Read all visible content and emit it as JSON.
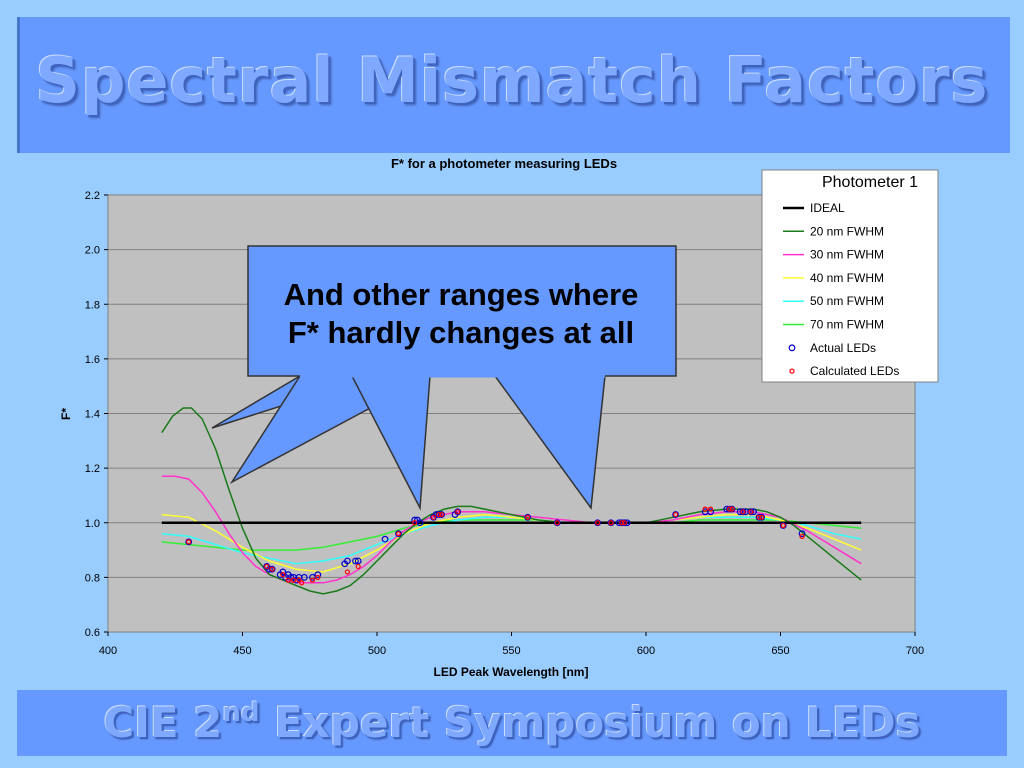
{
  "slide": {
    "title": "Spectral Mismatch Factors",
    "footer_main": "CIE 2",
    "footer_sup": "nd",
    "footer_rest": " Expert Symposium on LEDs",
    "callout_line1": "And other ranges where",
    "callout_line2": "F* hardly changes at all",
    "colors": {
      "background": "#99ccff",
      "bar": "#6699ff",
      "callout": "#6699ff",
      "plot_bg": "#c0c0c0"
    }
  },
  "chart_data": {
    "type": "line",
    "title": "F* for a photometer measuring LEDs",
    "xlabel": "LED Peak Wavelength [nm]",
    "ylabel": "F*",
    "xlim": [
      400,
      700
    ],
    "ylim": [
      0.6,
      2.2
    ],
    "x_ticks": [
      "400",
      "450",
      "500",
      "550",
      "600",
      "650",
      "700"
    ],
    "y_ticks": [
      "0.6",
      "0.8",
      "1.0",
      "1.2",
      "1.4",
      "1.6",
      "1.8",
      "2.0",
      "2.2"
    ],
    "grid": "horizontal",
    "legend_title": "Photometer 1",
    "legend_position": "right",
    "series": [
      {
        "name": "IDEAL",
        "kind": "line",
        "color": "#000000",
        "x": [
          420,
          680
        ],
        "y": [
          1.0,
          1.0
        ]
      },
      {
        "name": "20 nm FWHM",
        "kind": "line",
        "color": "#1a7a1a",
        "x": [
          420,
          424,
          428,
          431,
          435,
          440,
          445,
          450,
          455,
          460,
          465,
          470,
          475,
          480,
          485,
          490,
          495,
          500,
          505,
          510,
          515,
          520,
          525,
          530,
          535,
          540,
          550,
          560,
          570,
          580,
          590,
          600,
          610,
          620,
          630,
          640,
          645,
          650,
          655,
          660,
          665,
          670,
          675,
          680
        ],
        "y": [
          1.33,
          1.39,
          1.42,
          1.42,
          1.38,
          1.27,
          1.12,
          0.98,
          0.87,
          0.81,
          0.79,
          0.77,
          0.75,
          0.74,
          0.75,
          0.77,
          0.81,
          0.86,
          0.91,
          0.96,
          1.0,
          1.03,
          1.05,
          1.06,
          1.06,
          1.05,
          1.03,
          1.01,
          1.0,
          1.0,
          1.0,
          1.0,
          1.02,
          1.04,
          1.05,
          1.05,
          1.04,
          1.02,
          0.99,
          0.95,
          0.91,
          0.87,
          0.83,
          0.79
        ]
      },
      {
        "name": "30 nm FWHM",
        "kind": "line",
        "color": "#ff33cc",
        "x": [
          420,
          425,
          430,
          435,
          440,
          445,
          450,
          455,
          460,
          465,
          470,
          475,
          480,
          485,
          490,
          495,
          500,
          505,
          510,
          515,
          520,
          530,
          540,
          550,
          560,
          570,
          580,
          590,
          600,
          610,
          620,
          630,
          640,
          650,
          660,
          670,
          680
        ],
        "y": [
          1.17,
          1.17,
          1.16,
          1.11,
          1.04,
          0.96,
          0.89,
          0.84,
          0.81,
          0.79,
          0.78,
          0.78,
          0.78,
          0.79,
          0.81,
          0.84,
          0.88,
          0.93,
          0.97,
          1.0,
          1.02,
          1.04,
          1.04,
          1.03,
          1.02,
          1.01,
          1.0,
          1.0,
          1.0,
          1.01,
          1.03,
          1.04,
          1.04,
          1.02,
          0.97,
          0.91,
          0.85
        ]
      },
      {
        "name": "40 nm FWHM",
        "kind": "line",
        "color": "#ffff33",
        "x": [
          420,
          430,
          440,
          450,
          460,
          470,
          480,
          490,
          500,
          510,
          520,
          530,
          540,
          550,
          560,
          570,
          580,
          590,
          600,
          610,
          620,
          630,
          640,
          650,
          660,
          670,
          680
        ],
        "y": [
          1.03,
          1.02,
          0.97,
          0.91,
          0.86,
          0.83,
          0.82,
          0.85,
          0.9,
          0.96,
          1.0,
          1.02,
          1.03,
          1.02,
          1.01,
          1.0,
          1.0,
          1.0,
          1.0,
          1.01,
          1.02,
          1.03,
          1.03,
          1.01,
          0.98,
          0.94,
          0.9
        ]
      },
      {
        "name": "50 nm FWHM",
        "kind": "line",
        "color": "#33ffff",
        "x": [
          420,
          430,
          440,
          450,
          460,
          470,
          480,
          490,
          500,
          510,
          520,
          530,
          540,
          550,
          560,
          570,
          580,
          590,
          600,
          610,
          620,
          630,
          640,
          650,
          660,
          670,
          680
        ],
        "y": [
          0.96,
          0.95,
          0.92,
          0.89,
          0.87,
          0.85,
          0.86,
          0.88,
          0.92,
          0.96,
          0.99,
          1.01,
          1.02,
          1.02,
          1.01,
          1.0,
          1.0,
          1.0,
          1.0,
          1.01,
          1.02,
          1.02,
          1.02,
          1.01,
          0.99,
          0.96,
          0.94
        ]
      },
      {
        "name": "70 nm FWHM",
        "kind": "line",
        "color": "#33ee33",
        "x": [
          420,
          430,
          440,
          450,
          460,
          470,
          480,
          490,
          500,
          510,
          520,
          530,
          540,
          550,
          560,
          570,
          580,
          590,
          600,
          610,
          620,
          630,
          640,
          650,
          660,
          670,
          680
        ],
        "y": [
          0.93,
          0.92,
          0.91,
          0.9,
          0.9,
          0.9,
          0.91,
          0.93,
          0.95,
          0.98,
          1.0,
          1.01,
          1.01,
          1.01,
          1.01,
          1.0,
          1.0,
          1.0,
          1.0,
          1.0,
          1.01,
          1.01,
          1.01,
          1.01,
          1.0,
          0.99,
          0.98
        ]
      },
      {
        "name": "Actual LEDs",
        "kind": "scatter",
        "color": "#0000cc",
        "x": [
          430,
          459,
          460,
          461,
          464,
          465,
          466,
          467,
          468,
          469,
          470,
          471,
          473,
          476,
          478,
          488,
          489,
          492,
          493,
          503,
          508,
          514,
          515,
          516,
          521,
          522,
          523,
          524,
          529,
          530,
          556,
          567,
          582,
          587,
          590,
          591,
          592,
          593,
          611,
          622,
          624,
          630,
          631,
          632,
          635,
          636,
          637,
          639,
          640,
          642,
          643,
          651,
          658
        ],
        "y": [
          0.93,
          0.84,
          0.83,
          0.83,
          0.81,
          0.82,
          0.8,
          0.81,
          0.8,
          0.8,
          0.79,
          0.8,
          0.8,
          0.8,
          0.81,
          0.85,
          0.86,
          0.86,
          0.86,
          0.94,
          0.96,
          1.01,
          1.01,
          1.0,
          1.02,
          1.03,
          1.03,
          1.03,
          1.03,
          1.04,
          1.02,
          1.0,
          1.0,
          1.0,
          1.0,
          1.0,
          1.0,
          1.0,
          1.03,
          1.04,
          1.04,
          1.05,
          1.05,
          1.05,
          1.04,
          1.04,
          1.04,
          1.04,
          1.04,
          1.02,
          1.02,
          0.99,
          0.96
        ]
      },
      {
        "name": "Calculated LEDs",
        "kind": "scatter",
        "color": "#ff0000",
        "x": [
          430,
          459,
          461,
          465,
          467,
          469,
          471,
          472,
          476,
          478,
          489,
          493,
          508,
          514,
          521,
          523,
          524,
          530,
          556,
          567,
          582,
          587,
          591,
          592,
          611,
          622,
          624,
          631,
          632,
          636,
          639,
          642,
          643,
          651,
          658
        ],
        "y": [
          0.93,
          0.84,
          0.83,
          0.81,
          0.79,
          0.79,
          0.79,
          0.78,
          0.79,
          0.8,
          0.82,
          0.84,
          0.96,
          1.0,
          1.02,
          1.03,
          1.03,
          1.04,
          1.02,
          1.0,
          1.0,
          1.0,
          1.0,
          1.0,
          1.03,
          1.05,
          1.05,
          1.05,
          1.05,
          1.04,
          1.04,
          1.02,
          1.02,
          0.99,
          0.95
        ]
      }
    ]
  }
}
